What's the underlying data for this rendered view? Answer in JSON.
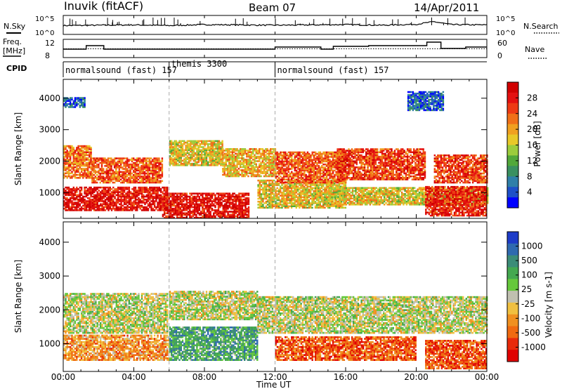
{
  "header": {
    "left": "Inuvik (fitACF)",
    "center": "Beam 07",
    "right": "14/Apr/2011"
  },
  "chart_data": [
    {
      "type": "line",
      "panel": "noise",
      "ylabel_left": "N.Sky",
      "ylabel_right": "N.Search",
      "yticks_left": [
        "10^5",
        "10^0"
      ],
      "yticks_right": [
        "10^5",
        "10^0"
      ],
      "legend_right_style": "dotted",
      "series": [
        {
          "name": "N.Sky",
          "x": [
            0,
            2,
            4,
            6,
            8,
            10,
            12,
            14,
            16,
            18,
            20,
            21,
            22,
            24
          ],
          "values": [
            2.3,
            2.4,
            2.5,
            2.3,
            2.6,
            2.5,
            2.4,
            2.5,
            2.6,
            2.4,
            2.7,
            3.5,
            2.6,
            2.5
          ]
        }
      ]
    },
    {
      "type": "line",
      "panel": "frequency",
      "ylabel_left_lines": [
        "Freq.",
        "[MHz]"
      ],
      "ylabel_right": "Nave",
      "yticks_left": [
        "12",
        "8"
      ],
      "yticks_right": [
        "60",
        "0"
      ],
      "series": [
        {
          "name": "Freq.",
          "x": [
            0,
            1.3,
            1.3,
            2.3,
            2.3,
            12,
            12,
            14.6,
            14.6,
            15.3,
            15.3,
            17.3,
            17.3,
            20.6,
            20.6,
            21.4,
            21.4,
            22.8,
            22.8,
            24
          ],
          "values": [
            10.0,
            10.0,
            11.0,
            11.0,
            10.0,
            10.0,
            10.6,
            10.6,
            10.0,
            10.0,
            10.8,
            10.8,
            11.0,
            11.0,
            12.0,
            12.0,
            10.2,
            10.2,
            10.6,
            10.6
          ]
        }
      ]
    },
    {
      "type": "segments",
      "panel": "cpid",
      "label": "CPID",
      "segments": [
        {
          "start": 0,
          "end": 6,
          "label": "normalsound (fast) 157"
        },
        {
          "start": 6,
          "end": 12,
          "label": "themis 3300"
        },
        {
          "start": 12,
          "end": 24,
          "label": "normalsound (fast) 157"
        }
      ]
    },
    {
      "type": "heatmap",
      "panel": "power",
      "ylabel": "Slant Range [km]",
      "yticks": [
        "1000",
        "2000",
        "3000",
        "4000"
      ],
      "ylim": [
        180,
        4600
      ],
      "colorbar_label": "Power [dB]",
      "colorbar_ticks": [
        "4",
        "8",
        "12",
        "16",
        "20",
        "24",
        "28"
      ],
      "colorbar_colors": [
        "#0000ff",
        "#1e50c8",
        "#2f7fa8",
        "#3a9060",
        "#52a83a",
        "#9ccc3c",
        "#e8c828",
        "#f0a020",
        "#f07018",
        "#ee3a14",
        "#e41010",
        "#d00000"
      ],
      "bands": [
        {
          "x0": 0,
          "x1": 5.9,
          "r0": 420,
          "r1": 1150,
          "level": 0.9
        },
        {
          "x0": 0,
          "x1": 1.6,
          "r0": 1450,
          "r1": 2500,
          "level": 0.7
        },
        {
          "x0": 1.6,
          "x1": 5.6,
          "r0": 1300,
          "r1": 2100,
          "level": 0.75
        },
        {
          "x0": 5.6,
          "x1": 10.5,
          "r0": 180,
          "r1": 950,
          "level": 0.9
        },
        {
          "x0": 6,
          "x1": 9,
          "r0": 1850,
          "r1": 2650,
          "level": 0.55
        },
        {
          "x0": 9,
          "x1": 12,
          "r0": 1500,
          "r1": 2400,
          "level": 0.6
        },
        {
          "x0": 11,
          "x1": 16,
          "r0": 500,
          "r1": 1400,
          "level": 0.55
        },
        {
          "x0": 12,
          "x1": 16,
          "r0": 1300,
          "r1": 2300,
          "level": 0.75
        },
        {
          "x0": 15,
          "x1": 24,
          "r0": 600,
          "r1": 1150,
          "level": 0.55
        },
        {
          "x0": 15.5,
          "x1": 20.5,
          "r0": 1400,
          "r1": 2400,
          "level": 0.8
        },
        {
          "x0": 20.5,
          "x1": 24,
          "r0": 250,
          "r1": 1200,
          "level": 0.85
        },
        {
          "x0": 21,
          "x1": 24,
          "r0": 1300,
          "r1": 2200,
          "level": 0.8
        },
        {
          "x0": 0,
          "x1": 1.2,
          "r0": 3700,
          "r1": 4000,
          "level": 0.15
        },
        {
          "x0": 19.5,
          "x1": 21.5,
          "r0": 3600,
          "r1": 4200,
          "level": 0.15
        }
      ]
    },
    {
      "type": "heatmap",
      "panel": "velocity",
      "ylabel": "Slant Range [km]",
      "yticks": [
        "1000",
        "2000",
        "3000",
        "4000"
      ],
      "ylim": [
        180,
        4600
      ],
      "colorbar_label": "Velocity [m s-1]",
      "colorbar_ticks": [
        "1000",
        "500",
        "100",
        "25",
        "-25",
        "-100",
        "-500",
        "-1000"
      ],
      "colorbar_colors": [
        "#1e3cc8",
        "#2f6ab0",
        "#3c8c78",
        "#44a850",
        "#66c83c",
        "#c0c0b0",
        "#f0c040",
        "#f09020",
        "#f06a10",
        "#e82a0a",
        "#e00000"
      ],
      "bands": [
        {
          "x0": 0,
          "x1": 5.9,
          "r0": 1300,
          "r1": 2500,
          "level": 0.5
        },
        {
          "x0": 0,
          "x1": 6,
          "r0": 500,
          "r1": 1250,
          "level": 0.68
        },
        {
          "x0": 6,
          "x1": 11,
          "r0": 1700,
          "r1": 2550,
          "level": 0.5
        },
        {
          "x0": 6,
          "x1": 11,
          "r0": 500,
          "r1": 1500,
          "level": 0.3
        },
        {
          "x0": 11,
          "x1": 24,
          "r0": 1300,
          "r1": 2400,
          "level": 0.5
        },
        {
          "x0": 12,
          "x1": 20,
          "r0": 500,
          "r1": 1200,
          "level": 0.8
        },
        {
          "x0": 20.5,
          "x1": 24,
          "r0": 250,
          "r1": 1100,
          "level": 0.82
        }
      ]
    }
  ],
  "axes": {
    "xticks": [
      "00:00",
      "04:00",
      "08:00",
      "12:00",
      "16:00",
      "20:00",
      "00:00"
    ],
    "xlabel": "Time UT"
  }
}
